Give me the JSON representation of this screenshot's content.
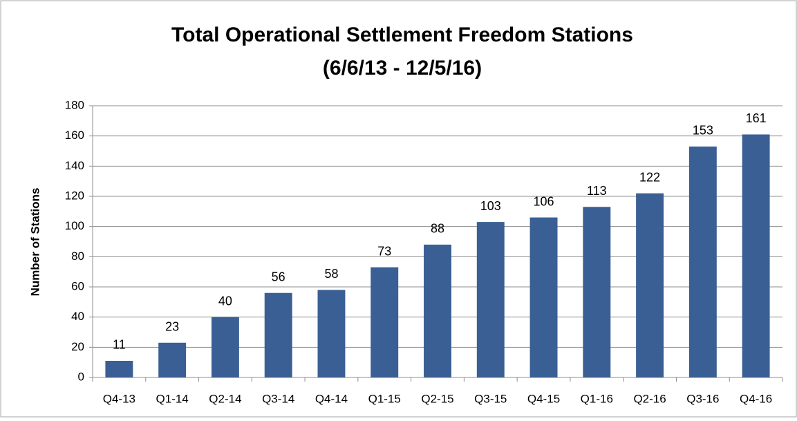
{
  "chart_data": {
    "type": "bar",
    "title": "Total Operational Settlement Freedom Stations",
    "subtitle": "(6/6/13 - 12/5/16)",
    "y_label": "Number of Stations",
    "categories": [
      "Q4-13",
      "Q1-14",
      "Q2-14",
      "Q3-14",
      "Q4-14",
      "Q1-15",
      "Q2-15",
      "Q3-15",
      "Q4-15",
      "Q1-16",
      "Q2-16",
      "Q3-16",
      "Q4-16"
    ],
    "values": [
      11,
      23,
      40,
      56,
      58,
      73,
      88,
      103,
      106,
      113,
      122,
      153,
      161
    ],
    "color": "#3a5f94",
    "ylim": [
      0,
      180
    ],
    "yticks": [
      0,
      20,
      40,
      60,
      80,
      100,
      120,
      140,
      160,
      180
    ],
    "grid": true
  }
}
